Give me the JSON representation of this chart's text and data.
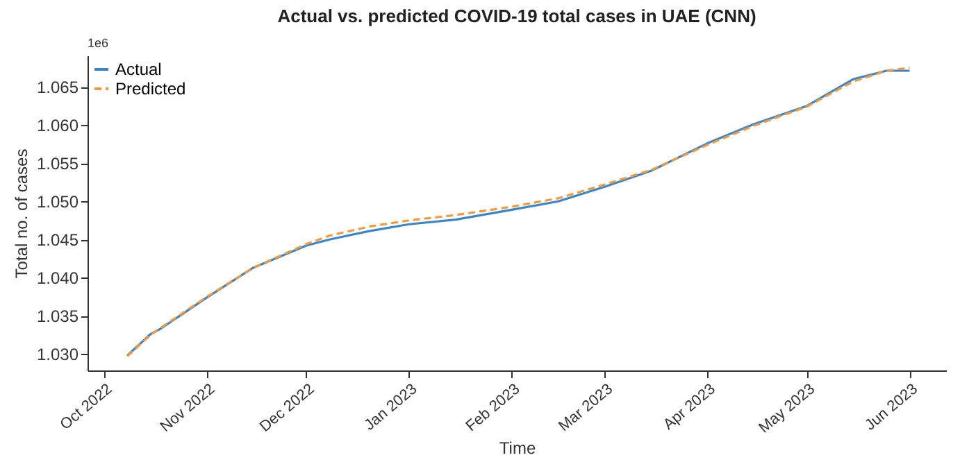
{
  "chart_data": {
    "type": "line",
    "title": "Actual vs. predicted COVID-19 total cases in UAE (CNN)",
    "xlabel": "Time",
    "ylabel": "Total no. of cases",
    "annotations": [
      "1e6"
    ],
    "xlim": [
      "2022-09-26",
      "2023-06-12"
    ],
    "xticks": [
      {
        "value": "2022-10-01",
        "label": "Oct 2022"
      },
      {
        "value": "2022-11-01",
        "label": "Nov 2022"
      },
      {
        "value": "2022-12-01",
        "label": "Dec 2022"
      },
      {
        "value": "2023-01-01",
        "label": "Jan 2023"
      },
      {
        "value": "2023-02-01",
        "label": "Feb 2023"
      },
      {
        "value": "2023-03-01",
        "label": "Mar 2023"
      },
      {
        "value": "2023-04-01",
        "label": "Apr 2023"
      },
      {
        "value": "2023-05-01",
        "label": "May 2023"
      },
      {
        "value": "2023-06-01",
        "label": "Jun 2023"
      }
    ],
    "ylim": [
      1.02785,
      1.0691
    ],
    "yticks": [
      {
        "value": 1.03,
        "label": "1.030"
      },
      {
        "value": 1.035,
        "label": "1.035"
      },
      {
        "value": 1.04,
        "label": "1.040"
      },
      {
        "value": 1.045,
        "label": "1.045"
      },
      {
        "value": 1.05,
        "label": "1.050"
      },
      {
        "value": 1.055,
        "label": "1.055"
      },
      {
        "value": 1.06,
        "label": "1.060"
      },
      {
        "value": 1.065,
        "label": "1.065"
      }
    ],
    "x": [
      "2022-10-08",
      "2022-10-15",
      "2022-10-18",
      "2022-11-01",
      "2022-11-15",
      "2022-12-01",
      "2022-12-08",
      "2022-12-20",
      "2023-01-01",
      "2023-01-15",
      "2023-02-01",
      "2023-02-15",
      "2023-03-01",
      "2023-03-15",
      "2023-04-01",
      "2023-04-15",
      "2023-05-01",
      "2023-05-15",
      "2023-05-25",
      "2023-06-01"
    ],
    "series": [
      {
        "name": "Actual",
        "color": "#3a86c6",
        "line_style": "solid",
        "values": [
          1.0298,
          1.0326,
          1.0333,
          1.0374,
          1.0413,
          1.0442,
          1.045,
          1.0461,
          1.047,
          1.0476,
          1.0489,
          1.05,
          1.0519,
          1.054,
          1.0576,
          1.0601,
          1.0625,
          1.066,
          1.0671,
          1.0671
        ]
      },
      {
        "name": "Predicted",
        "color": "#f39a3c",
        "line_style": "dashed",
        "values": [
          1.0297,
          1.0325,
          1.0334,
          1.0375,
          1.0413,
          1.0444,
          1.0455,
          1.0467,
          1.0475,
          1.0482,
          1.0493,
          1.0504,
          1.0522,
          1.0541,
          1.0574,
          1.0599,
          1.0624,
          1.0657,
          1.0671,
          1.0675
        ]
      }
    ],
    "legend": "top left",
    "grid": false,
    "marker": "none"
  }
}
